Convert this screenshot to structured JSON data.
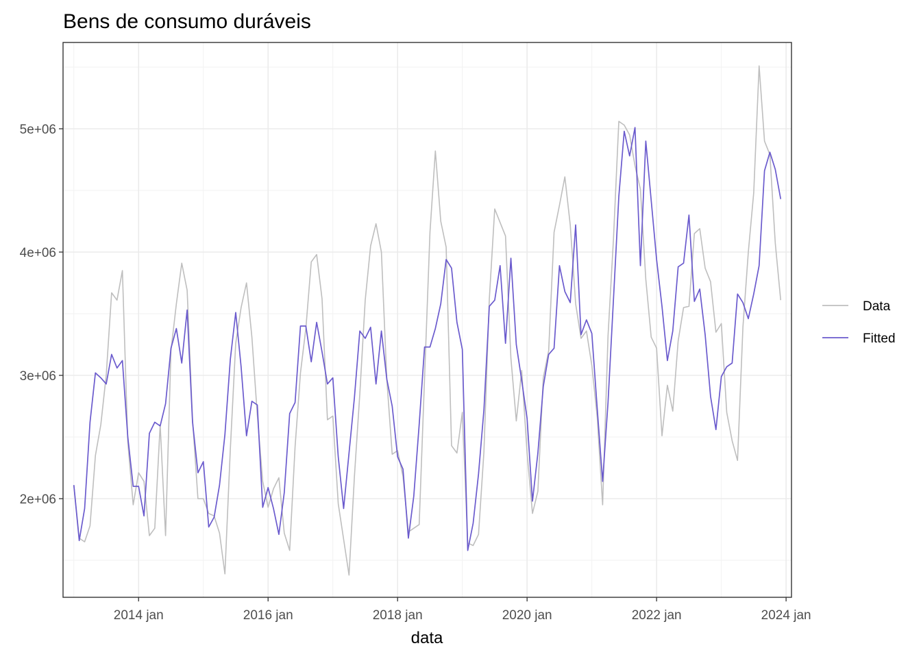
{
  "chart_data": {
    "type": "line",
    "title": "Bens de consumo duráveis",
    "xlabel": "data",
    "ylabel": "",
    "x_ticks": [
      "2014 jan",
      "2016 jan",
      "2018 jan",
      "2020 jan",
      "2022 jan",
      "2024 jan"
    ],
    "y_ticks": [
      "2e+06",
      "3e+06",
      "4e+06",
      "5e+06"
    ],
    "xlim": [
      "2012-11",
      "2024-02"
    ],
    "ylim": [
      1200000,
      5700000
    ],
    "grid": true,
    "legend_position": "right",
    "x": [
      "2013-01",
      "2013-02",
      "2013-03",
      "2013-04",
      "2013-05",
      "2013-06",
      "2013-07",
      "2013-08",
      "2013-09",
      "2013-10",
      "2013-11",
      "2013-12",
      "2014-01",
      "2014-02",
      "2014-03",
      "2014-04",
      "2014-05",
      "2014-06",
      "2014-07",
      "2014-08",
      "2014-09",
      "2014-10",
      "2014-11",
      "2014-12",
      "2015-01",
      "2015-02",
      "2015-03",
      "2015-04",
      "2015-05",
      "2015-06",
      "2015-07",
      "2015-08",
      "2015-09",
      "2015-10",
      "2015-11",
      "2015-12",
      "2016-01",
      "2016-02",
      "2016-03",
      "2016-04",
      "2016-05",
      "2016-06",
      "2016-07",
      "2016-08",
      "2016-09",
      "2016-10",
      "2016-11",
      "2016-12",
      "2017-01",
      "2017-02",
      "2017-03",
      "2017-04",
      "2017-05",
      "2017-06",
      "2017-07",
      "2017-08",
      "2017-09",
      "2017-10",
      "2017-11",
      "2017-12",
      "2018-01",
      "2018-02",
      "2018-03",
      "2018-04",
      "2018-05",
      "2018-06",
      "2018-07",
      "2018-08",
      "2018-09",
      "2018-10",
      "2018-11",
      "2018-12",
      "2019-01",
      "2019-02",
      "2019-03",
      "2019-04",
      "2019-05",
      "2019-06",
      "2019-07",
      "2019-08",
      "2019-09",
      "2019-10",
      "2019-11",
      "2019-12",
      "2020-01",
      "2020-02",
      "2020-03",
      "2020-04",
      "2020-05",
      "2020-06",
      "2020-07",
      "2020-08",
      "2020-09",
      "2020-10",
      "2020-11",
      "2020-12",
      "2021-01",
      "2021-02",
      "2021-03",
      "2021-04",
      "2021-05",
      "2021-06",
      "2021-07",
      "2021-08",
      "2021-09",
      "2021-10",
      "2021-11",
      "2021-12",
      "2022-01",
      "2022-02",
      "2022-03",
      "2022-04",
      "2022-05",
      "2022-06",
      "2022-07",
      "2022-08",
      "2022-09",
      "2022-10",
      "2022-11",
      "2022-12",
      "2023-01",
      "2023-02",
      "2023-03",
      "2023-04",
      "2023-05",
      "2023-06",
      "2023-07",
      "2023-08",
      "2023-09",
      "2023-10",
      "2023-11",
      "2023-12"
    ],
    "series": [
      {
        "name": "Data",
        "color": "#bebebe",
        "values": [
          2110000,
          1680000,
          1650000,
          1780000,
          2350000,
          2600000,
          3000000,
          3670000,
          3610000,
          3850000,
          2460000,
          1950000,
          2210000,
          2140000,
          1700000,
          1760000,
          2600000,
          1700000,
          3200000,
          3580000,
          3910000,
          3690000,
          2640000,
          2000000,
          2000000,
          1880000,
          1860000,
          1720000,
          1390000,
          2400000,
          3260000,
          3550000,
          3750000,
          3310000,
          2680000,
          2140000,
          1930000,
          2080000,
          2170000,
          1720000,
          1580000,
          2420000,
          3020000,
          3380000,
          3920000,
          3980000,
          3620000,
          2640000,
          2670000,
          1960000,
          1670000,
          1380000,
          2180000,
          2850000,
          3610000,
          4050000,
          4230000,
          4000000,
          2970000,
          2360000,
          2390000,
          2180000,
          1730000,
          1760000,
          1790000,
          2980000,
          4160000,
          4820000,
          4250000,
          4040000,
          2430000,
          2370000,
          2700000,
          1640000,
          1620000,
          1710000,
          2380000,
          3620000,
          4350000,
          4240000,
          4130000,
          3140000,
          2630000,
          3040000,
          2370000,
          1880000,
          2060000,
          2980000,
          3200000,
          4160000,
          4380000,
          4610000,
          4220000,
          3580000,
          3300000,
          3360000,
          3080000,
          2660000,
          1950000,
          3320000,
          4100000,
          5060000,
          5030000,
          4950000,
          4700000,
          4510000,
          3780000,
          3310000,
          3220000,
          2510000,
          2920000,
          2710000,
          3280000,
          3550000,
          3560000,
          4150000,
          4190000,
          3870000,
          3760000,
          3350000,
          3420000,
          2700000,
          2470000,
          2310000,
          3390000,
          4000000,
          4480000,
          5510000,
          4900000,
          4790000,
          4070000,
          3610000
        ]
      },
      {
        "name": "Fitted",
        "color": "#6a5acd",
        "values": [
          2110000,
          1660000,
          1920000,
          2620000,
          3020000,
          2980000,
          2930000,
          3170000,
          3060000,
          3120000,
          2500000,
          2100000,
          2100000,
          1860000,
          2530000,
          2620000,
          2590000,
          2770000,
          3220000,
          3380000,
          3100000,
          3530000,
          2620000,
          2210000,
          2300000,
          1770000,
          1850000,
          2110000,
          2520000,
          3130000,
          3510000,
          3070000,
          2510000,
          2790000,
          2760000,
          1930000,
          2090000,
          1920000,
          1710000,
          2050000,
          2690000,
          2780000,
          3400000,
          3400000,
          3110000,
          3430000,
          3190000,
          2930000,
          2980000,
          2340000,
          1920000,
          2370000,
          2820000,
          3360000,
          3300000,
          3390000,
          2930000,
          3360000,
          2970000,
          2750000,
          2340000,
          2240000,
          1680000,
          2020000,
          2600000,
          3230000,
          3230000,
          3380000,
          3580000,
          3940000,
          3870000,
          3430000,
          3210000,
          1580000,
          1800000,
          2200000,
          2720000,
          3560000,
          3610000,
          3890000,
          3260000,
          3950000,
          3250000,
          2960000,
          2650000,
          1980000,
          2370000,
          2910000,
          3170000,
          3220000,
          3890000,
          3680000,
          3590000,
          4220000,
          3330000,
          3450000,
          3340000,
          2730000,
          2140000,
          2780000,
          3610000,
          4450000,
          4980000,
          4780000,
          5010000,
          3890000,
          4900000,
          4420000,
          3940000,
          3560000,
          3120000,
          3360000,
          3880000,
          3910000,
          4300000,
          3600000,
          3700000,
          3330000,
          2830000,
          2560000,
          2990000,
          3070000,
          3100000,
          3660000,
          3590000,
          3460000,
          3660000,
          3890000,
          4660000,
          4810000,
          4670000,
          4430000
        ]
      }
    ]
  }
}
